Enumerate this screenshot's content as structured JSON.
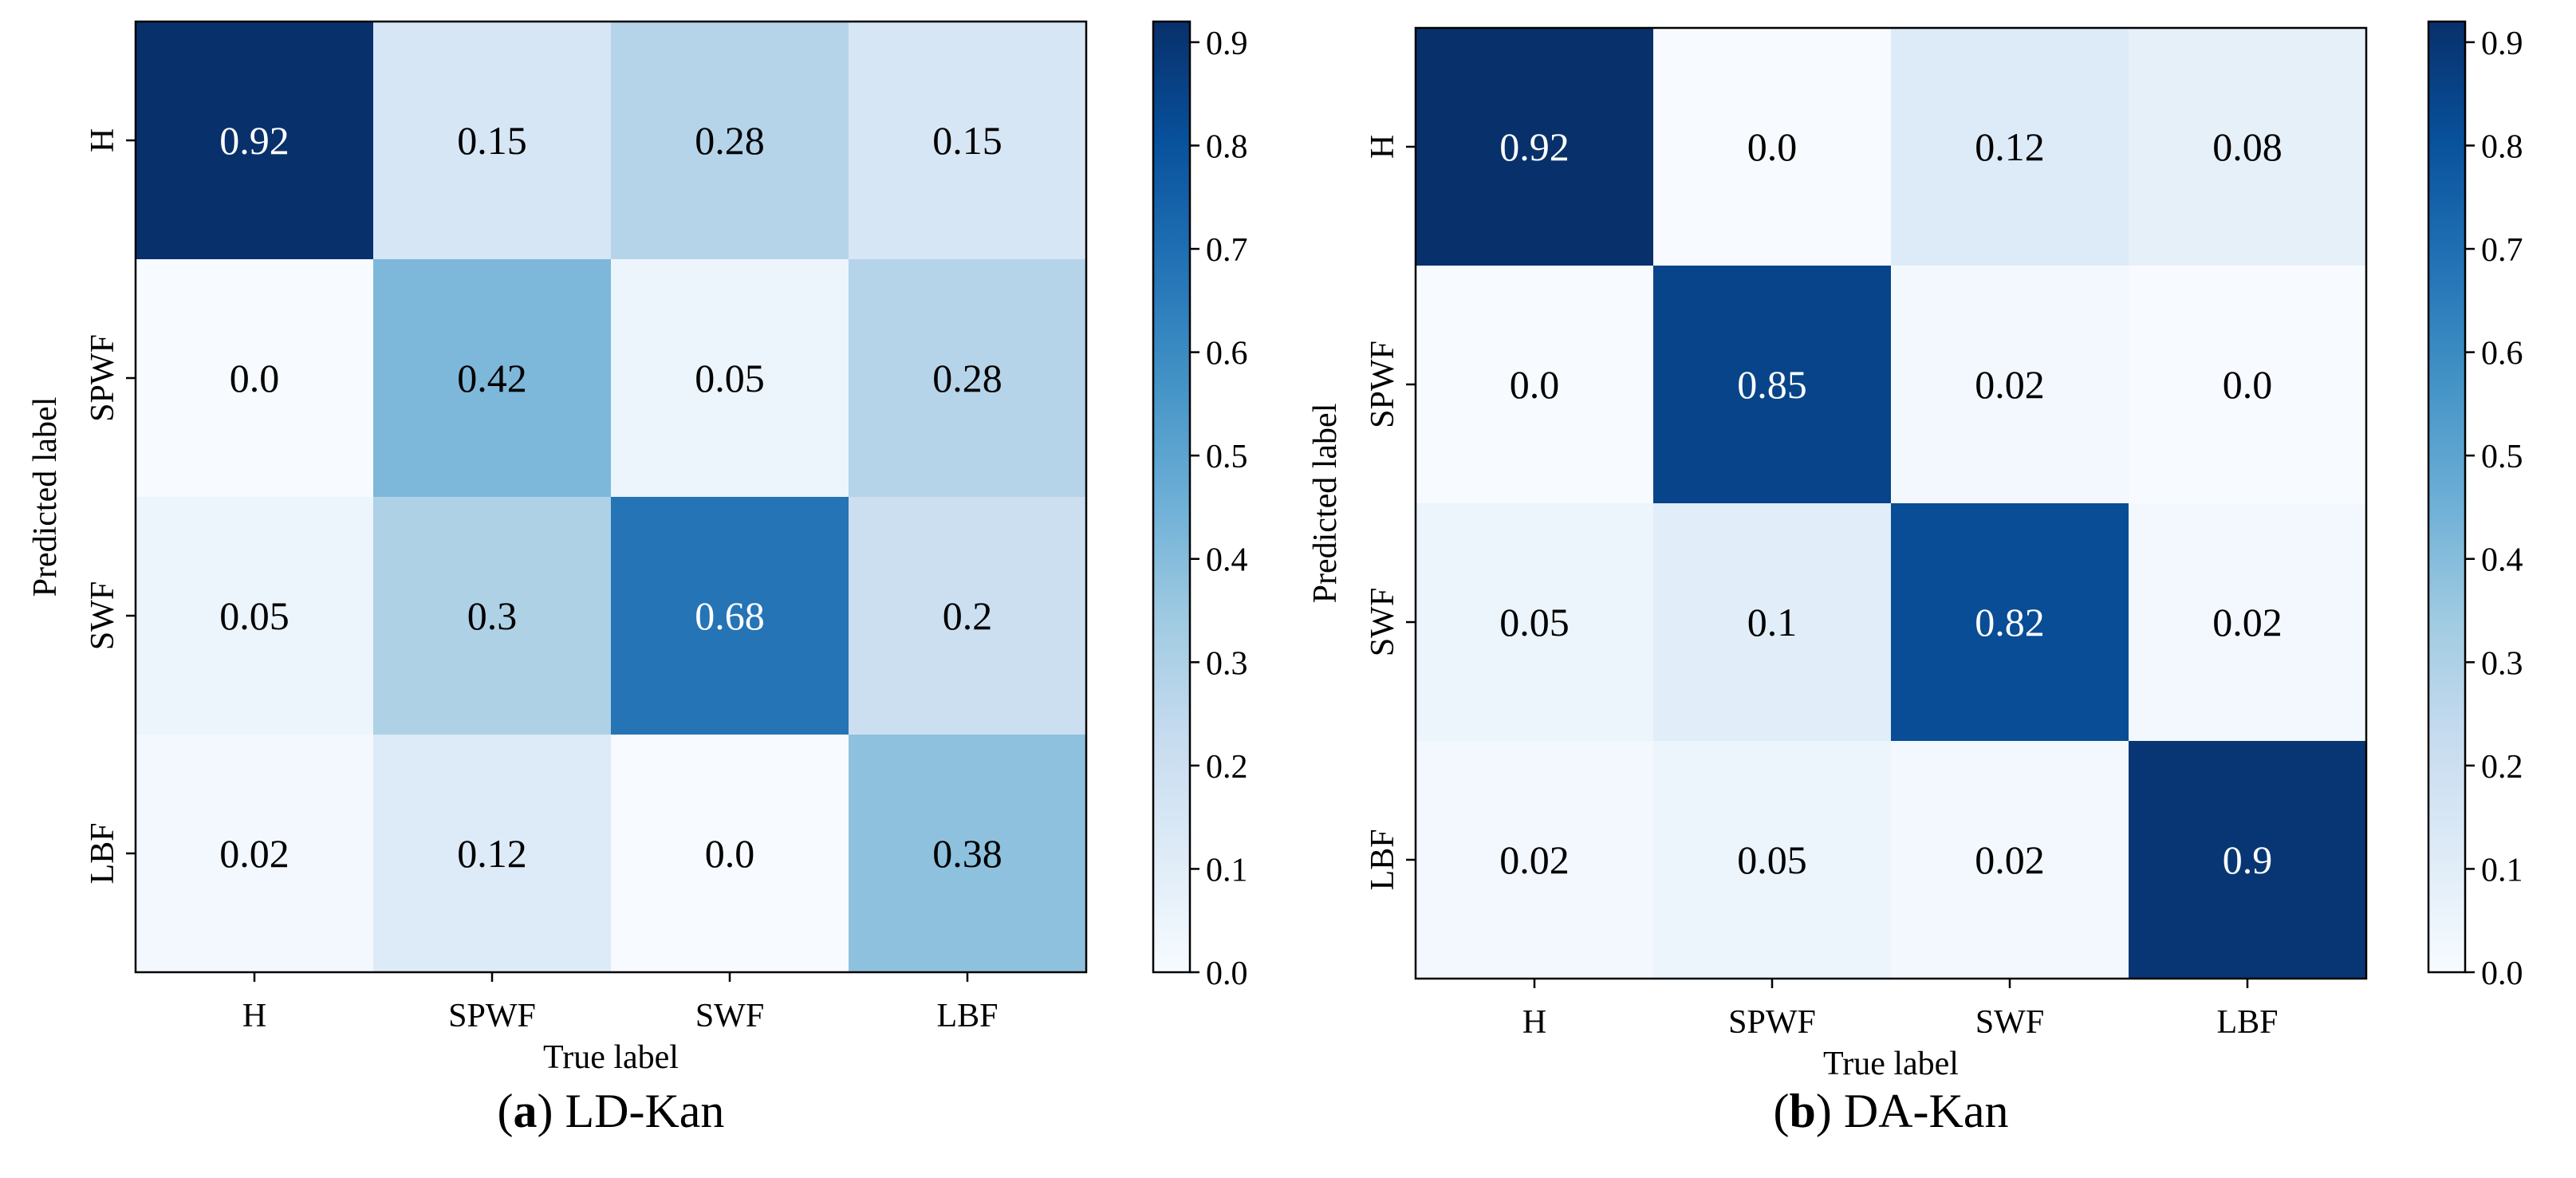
{
  "colormap": {
    "name": "Blues",
    "stops": [
      "#f7fbff",
      "#deebf7",
      "#c6dbef",
      "#9ecae1",
      "#6baed6",
      "#4292c6",
      "#2171b5",
      "#08519c",
      "#08306b"
    ],
    "text_light": "#ffffff",
    "text_dark": "#000000"
  },
  "chart_data": [
    {
      "type": "heatmap",
      "caption_letter": "a",
      "caption_text": ") LD-Kan",
      "caption_open": "(",
      "xlabel": "True label",
      "ylabel": "Predicted label",
      "x_categories": [
        "H",
        "SPWF",
        "SWF",
        "LBF"
      ],
      "y_categories": [
        "H",
        "SPWF",
        "SWF",
        "LBF"
      ],
      "values": [
        [
          0.92,
          0.15,
          0.28,
          0.15
        ],
        [
          0.0,
          0.42,
          0.05,
          0.28
        ],
        [
          0.05,
          0.3,
          0.68,
          0.2
        ],
        [
          0.02,
          0.12,
          0.0,
          0.38
        ]
      ],
      "value_labels": [
        [
          "0.92",
          "0.15",
          "0.28",
          "0.15"
        ],
        [
          "0.0",
          "0.42",
          "0.05",
          "0.28"
        ],
        [
          "0.05",
          "0.3",
          "0.68",
          "0.2"
        ],
        [
          "0.02",
          "0.12",
          "0.0",
          "0.38"
        ]
      ],
      "colorbar_range": [
        0.0,
        0.92
      ],
      "colorbar_ticks": [
        "0.0",
        "0.1",
        "0.2",
        "0.3",
        "0.4",
        "0.5",
        "0.6",
        "0.7",
        "0.8",
        "0.9"
      ]
    },
    {
      "type": "heatmap",
      "caption_letter": "b",
      "caption_text": ") DA-Kan",
      "caption_open": "(",
      "xlabel": "True label",
      "ylabel": "Predicted label",
      "x_categories": [
        "H",
        "SPWF",
        "SWF",
        "LBF"
      ],
      "y_categories": [
        "H",
        "SPWF",
        "SWF",
        "LBF"
      ],
      "values": [
        [
          0.92,
          0.0,
          0.12,
          0.08
        ],
        [
          0.0,
          0.85,
          0.02,
          0.0
        ],
        [
          0.05,
          0.1,
          0.82,
          0.02
        ],
        [
          0.02,
          0.05,
          0.02,
          0.9
        ]
      ],
      "value_labels": [
        [
          "0.92",
          "0.0",
          "0.12",
          "0.08"
        ],
        [
          "0.0",
          "0.85",
          "0.02",
          "0.0"
        ],
        [
          "0.05",
          "0.1",
          "0.82",
          "0.02"
        ],
        [
          "0.02",
          "0.05",
          "0.02",
          "0.9"
        ]
      ],
      "colorbar_range": [
        0.0,
        0.92
      ],
      "colorbar_ticks": [
        "0.0",
        "0.1",
        "0.2",
        "0.3",
        "0.4",
        "0.5",
        "0.6",
        "0.7",
        "0.8",
        "0.9"
      ]
    }
  ]
}
